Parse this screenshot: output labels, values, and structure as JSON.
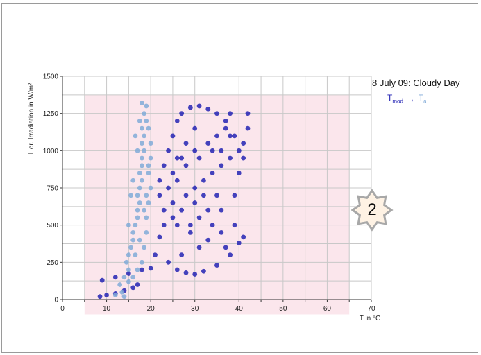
{
  "chart_data": {
    "type": "scatter",
    "title": "",
    "xlabel": "T in °C",
    "ylabel": "Hor. Irradiation in W/m²",
    "xlim": [
      0,
      70
    ],
    "ylim": [
      0,
      1500
    ],
    "xticks": [
      "0",
      "10",
      "20",
      "30",
      "40",
      "50",
      "60",
      "70"
    ],
    "yticks": [
      "0",
      "250",
      "500",
      "750",
      "1000",
      "1250",
      "1500"
    ],
    "grid": true,
    "legend_position": "right",
    "legend_title": "8 July 09: Cloudy Day",
    "series": [
      {
        "name": "T_mod",
        "label_main": "T",
        "label_sub": "mod",
        "color": "#2323b4",
        "points": [
          [
            8.5,
            20
          ],
          [
            10,
            30
          ],
          [
            12,
            40
          ],
          [
            14,
            60
          ],
          [
            16,
            80
          ],
          [
            17,
            100
          ],
          [
            9,
            130
          ],
          [
            12,
            150
          ],
          [
            15,
            175
          ],
          [
            18,
            200
          ],
          [
            20,
            210
          ],
          [
            21,
            300
          ],
          [
            22,
            420
          ],
          [
            23,
            500
          ],
          [
            25,
            550
          ],
          [
            27,
            600
          ],
          [
            30,
            650
          ],
          [
            32,
            700
          ],
          [
            24,
            250
          ],
          [
            26,
            200
          ],
          [
            28,
            180
          ],
          [
            30,
            170
          ],
          [
            32,
            190
          ],
          [
            35,
            230
          ],
          [
            38,
            300
          ],
          [
            40,
            380
          ],
          [
            41,
            420
          ],
          [
            37,
            350
          ],
          [
            33,
            400
          ],
          [
            29,
            450
          ],
          [
            26,
            500
          ],
          [
            25,
            650
          ],
          [
            24,
            750
          ],
          [
            25,
            850
          ],
          [
            27,
            950
          ],
          [
            30,
            1000
          ],
          [
            33,
            1050
          ],
          [
            35,
            1100
          ],
          [
            37,
            1150
          ],
          [
            39,
            1100
          ],
          [
            41,
            1050
          ],
          [
            40,
            1000
          ],
          [
            38,
            950
          ],
          [
            36,
            900
          ],
          [
            34,
            850
          ],
          [
            32,
            800
          ],
          [
            30,
            750
          ],
          [
            28,
            700
          ],
          [
            26,
            800
          ],
          [
            28,
            900
          ],
          [
            31,
            950
          ],
          [
            34,
            1000
          ],
          [
            36,
            1000
          ],
          [
            38,
            1100
          ],
          [
            37,
            1200
          ],
          [
            35,
            1250
          ],
          [
            33,
            1280
          ],
          [
            31,
            1300
          ],
          [
            29,
            1290
          ],
          [
            27,
            1250
          ],
          [
            26,
            1200
          ],
          [
            25,
            1100
          ],
          [
            24,
            1000
          ],
          [
            23,
            900
          ],
          [
            22,
            800
          ],
          [
            22,
            700
          ],
          [
            23,
            600
          ],
          [
            27,
            300
          ],
          [
            31,
            350
          ],
          [
            34,
            500
          ],
          [
            36,
            600
          ],
          [
            39,
            700
          ],
          [
            40,
            850
          ],
          [
            41,
            950
          ],
          [
            42,
            1150
          ],
          [
            42,
            1250
          ],
          [
            38,
            1250
          ],
          [
            30,
            1150
          ],
          [
            28,
            1050
          ],
          [
            26,
            950
          ],
          [
            35,
            700
          ],
          [
            33,
            600
          ],
          [
            31,
            550
          ],
          [
            29,
            500
          ],
          [
            36,
            450
          ],
          [
            39,
            500
          ]
        ]
      },
      {
        "name": "T_a",
        "label_main": "T",
        "label_sub": "a",
        "color": "#80aad8",
        "points": [
          [
            13,
            100
          ],
          [
            14,
            150
          ],
          [
            15,
            200
          ],
          [
            14.5,
            250
          ],
          [
            15,
            300
          ],
          [
            15.5,
            350
          ],
          [
            16,
            400
          ],
          [
            16,
            450
          ],
          [
            16.5,
            500
          ],
          [
            17,
            550
          ],
          [
            17,
            600
          ],
          [
            17.5,
            650
          ],
          [
            17,
            700
          ],
          [
            17.5,
            750
          ],
          [
            18,
            800
          ],
          [
            17.5,
            850
          ],
          [
            18,
            900
          ],
          [
            18,
            950
          ],
          [
            18.5,
            1000
          ],
          [
            18,
            1050
          ],
          [
            18.5,
            1100
          ],
          [
            18,
            1150
          ],
          [
            19,
            1200
          ],
          [
            18.5,
            1250
          ],
          [
            19,
            1300
          ],
          [
            18,
            1320
          ],
          [
            19.5,
            1150
          ],
          [
            20,
            1050
          ],
          [
            20,
            950
          ],
          [
            19.5,
            850
          ],
          [
            20,
            750
          ],
          [
            19.5,
            650
          ],
          [
            19,
            550
          ],
          [
            19,
            450
          ],
          [
            18.5,
            350
          ],
          [
            18,
            250
          ],
          [
            17,
            200
          ],
          [
            16,
            150
          ],
          [
            15,
            120
          ],
          [
            16.5,
            300
          ],
          [
            17.5,
            400
          ],
          [
            18.5,
            600
          ],
          [
            19,
            700
          ],
          [
            19.5,
            900
          ],
          [
            17,
            1000
          ],
          [
            16.5,
            1100
          ],
          [
            17.5,
            1200
          ],
          [
            15.5,
            700
          ],
          [
            16,
            800
          ],
          [
            15,
            500
          ],
          [
            13.5,
            50
          ],
          [
            12,
            30
          ],
          [
            14,
            20
          ]
        ]
      }
    ]
  },
  "badge": {
    "text": "2",
    "fill": "#fef2e4",
    "stroke": "#a8a8a8"
  }
}
